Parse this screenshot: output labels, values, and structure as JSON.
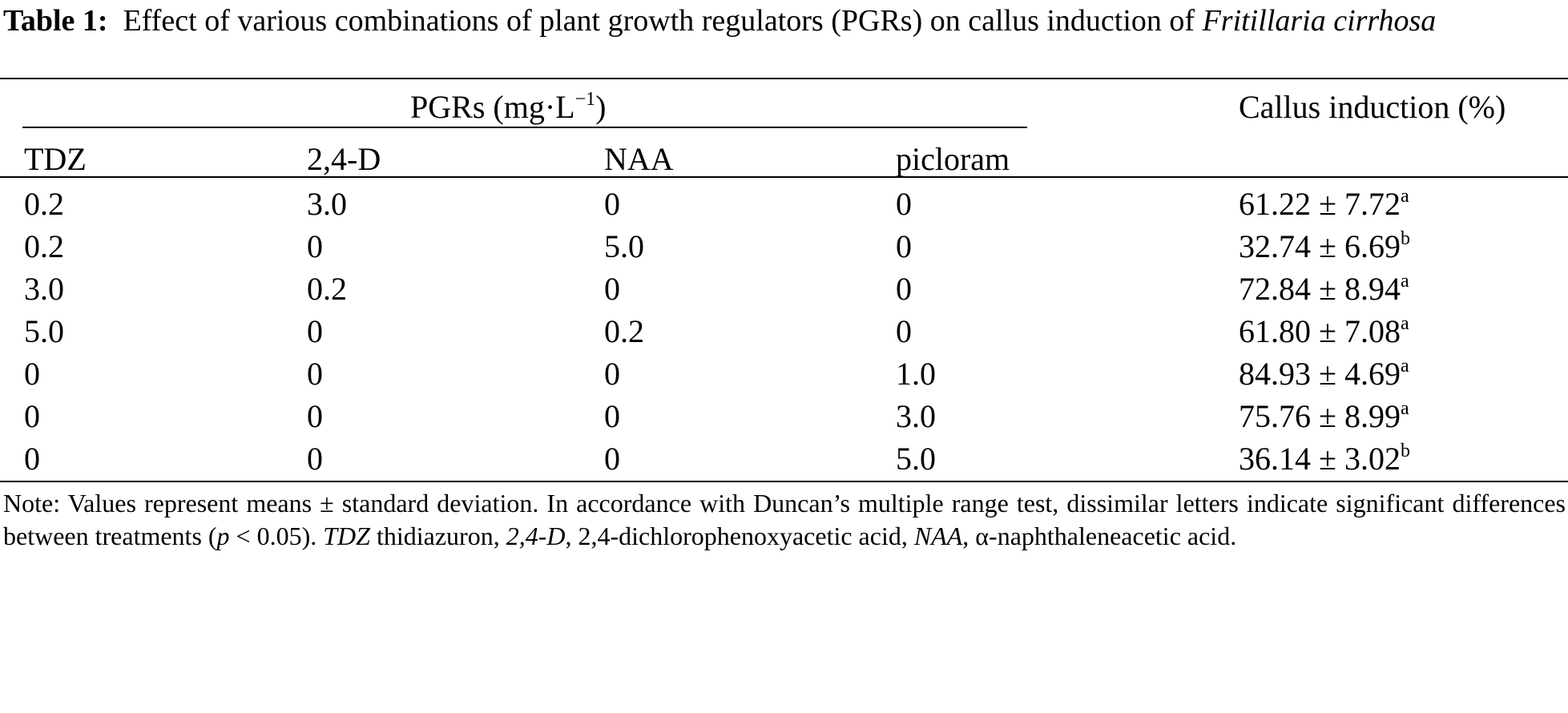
{
  "caption": {
    "label": "Table 1:",
    "text_plain": "Effect of various combinations of plant growth regulators (PGRs) on callus induction of",
    "text_italic": "Fritillaria cirrhosa"
  },
  "table": {
    "group_header": "PGRs (mg·L",
    "group_header_exp": "−1",
    "group_header_close": ")",
    "result_header": "Callus induction (%)",
    "columns": [
      "TDZ",
      "2,4-D",
      "NAA",
      "picloram"
    ],
    "rows": [
      {
        "tdz": "0.2",
        "d24": "3.0",
        "naa": "0",
        "picloram": "0",
        "value": "61.22 ± 7.72",
        "sig": "a"
      },
      {
        "tdz": "0.2",
        "d24": "0",
        "naa": "5.0",
        "picloram": "0",
        "value": "32.74 ± 6.69",
        "sig": "b"
      },
      {
        "tdz": "3.0",
        "d24": "0.2",
        "naa": "0",
        "picloram": "0",
        "value": "72.84 ± 8.94",
        "sig": "a"
      },
      {
        "tdz": "5.0",
        "d24": "0",
        "naa": "0.2",
        "picloram": "0",
        "value": "61.80 ± 7.08",
        "sig": "a"
      },
      {
        "tdz": "0",
        "d24": "0",
        "naa": "0",
        "picloram": "1.0",
        "value": "84.93 ± 4.69",
        "sig": "a"
      },
      {
        "tdz": "0",
        "d24": "0",
        "naa": "0",
        "picloram": "3.0",
        "value": "75.76 ± 8.99",
        "sig": "a"
      },
      {
        "tdz": "0",
        "d24": "0",
        "naa": "0",
        "picloram": "5.0",
        "value": "36.14 ± 3.02",
        "sig": "b"
      }
    ]
  },
  "note": {
    "p1": "Note: Values represent means ± standard deviation. In accordance with Duncan’s multiple range test, dissimilar letters indicate significant differences between treatments (",
    "p_var": "p",
    "p2": " < 0.05). ",
    "abbr1": "TDZ",
    "def1": " thidiazuron, ",
    "abbr2": "2,4-D",
    "def2": ", 2,4-dichlorophenoxyacetic acid, ",
    "abbr3": "NAA",
    "def3": ", α-naphthaleneacetic acid."
  }
}
